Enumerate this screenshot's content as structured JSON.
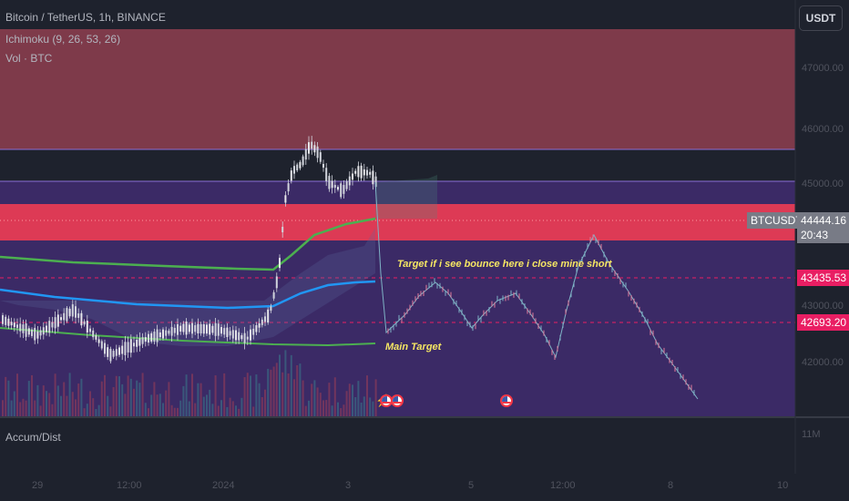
{
  "chart_header": {
    "symbol_line": "Bitcoin / TetherUS, 1h, BINANCE",
    "indicator_ichimoku": "Ichimoku (9, 26, 53, 26)",
    "indicator_volume": "Vol · BTC",
    "currency_button": "USDT"
  },
  "lower_pane": {
    "indicator_name": "Accum/Dist",
    "scale_label": "11M"
  },
  "price_scale": {
    "ticks": [
      "47000.00",
      "46000.00",
      "45000.00",
      "43000.00",
      "42000.00"
    ]
  },
  "time_scale": {
    "ticks": [
      "29",
      "12:00",
      "2024",
      "3",
      "5",
      "12:00",
      "8",
      "10"
    ]
  },
  "price_tags": {
    "symbol_label": "BTCUSDT",
    "last_price": "44444.16",
    "countdown": "20:43",
    "level_upper": "43435.53",
    "level_lower": "42693.20"
  },
  "annotations": {
    "bounce_target": "Target if i see bounce here i close mine short",
    "main_target": "Main Target"
  },
  "icons": [
    "lightning-icon",
    "us-flag-icon",
    "us-flag-icon",
    "us-flag-icon"
  ],
  "colors": {
    "background": "#1e222d",
    "resistance_zone": "#7e3a4a",
    "purple_zone": "#3b2a66",
    "red_zone": "#dd3a55",
    "candle_up": "#e6e6ea",
    "candle_down": "#d1d4dc",
    "ma_green": "#4caf50",
    "ma_blue": "#2196f3",
    "projection_line": "#7fb3c6",
    "last_price_tag": "#787b86",
    "level_tag": "#e91e63",
    "annotation_text": "#f5e663"
  }
}
